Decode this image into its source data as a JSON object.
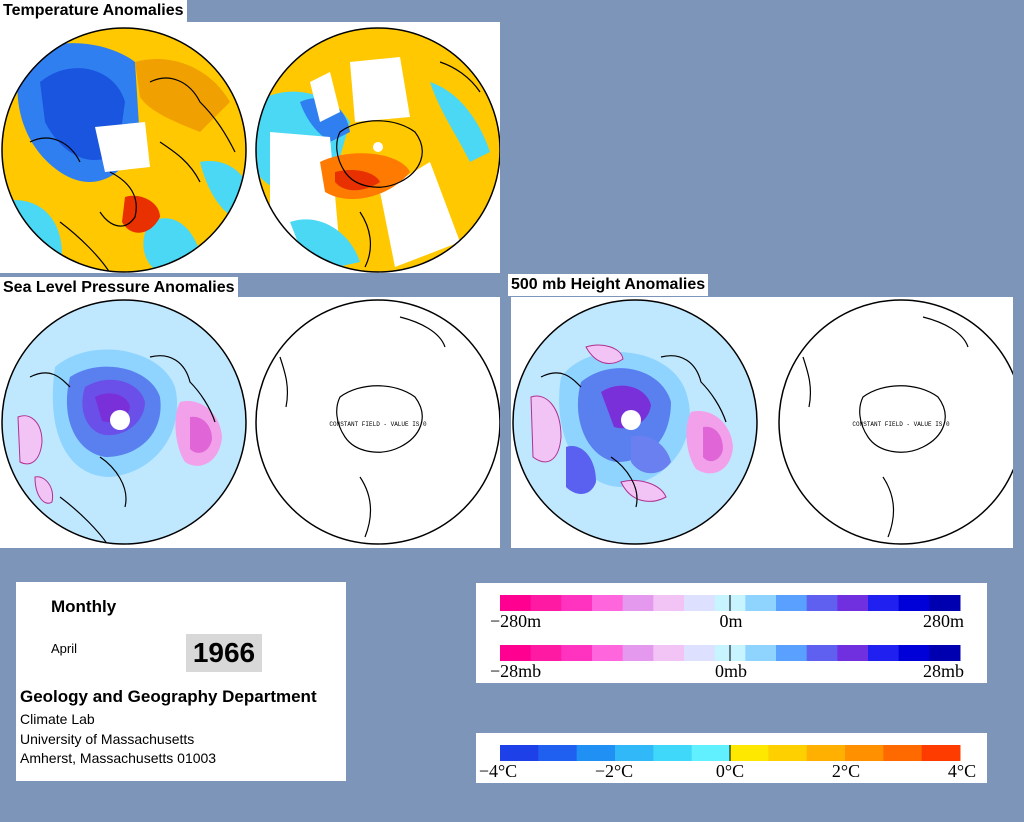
{
  "titles": {
    "temperature": "Temperature Anomalies",
    "slp": "Sea Level Pressure Anomalies",
    "height500": "500 mb Height Anomalies"
  },
  "map_annotations": {
    "slp_constant_field": "CONSTANT FIELD - VALUE IS 0",
    "height_constant_field": "CONSTANT FIELD - VALUE IS 0"
  },
  "info": {
    "period": "Monthly",
    "month": "April",
    "year": "1966",
    "department": "Geology and Geography Department",
    "lab": "Climate Lab",
    "university": "University of Massachusetts",
    "address": "Amherst, Massachusetts 01003"
  },
  "legend_height": {
    "min_label": "−280m",
    "mid_label": "0m",
    "max_label": "280m",
    "colors": [
      "#ff0090",
      "#ff1aa3",
      "#ff33c0",
      "#ff66dd",
      "#e599ee",
      "#f2c4f5",
      "#dde0ff",
      "#c8f4ff",
      "#8fd4ff",
      "#5aa0ff",
      "#6060f0",
      "#7030e0",
      "#2020f0",
      "#0000d8",
      "#0000b0"
    ]
  },
  "legend_slp": {
    "min_label": "−28mb",
    "mid_label": "0mb",
    "max_label": "28mb",
    "colors": [
      "#ff0090",
      "#ff1aa3",
      "#ff33c0",
      "#ff66dd",
      "#e599ee",
      "#f2c4f5",
      "#dde0ff",
      "#c8f4ff",
      "#8fd4ff",
      "#5aa0ff",
      "#6060f0",
      "#7030e0",
      "#2020f0",
      "#0000d8",
      "#0000b0"
    ]
  },
  "legend_temp": {
    "labels": [
      "−4°C",
      "−2°C",
      "0°C",
      "2°C",
      "4°C"
    ],
    "colors": [
      "#1e40e8",
      "#1f60f0",
      "#2090f5",
      "#30b8f8",
      "#40d8fa",
      "#60f0ff",
      "#ffe800",
      "#ffd000",
      "#ffb000",
      "#ff9000",
      "#ff6a00",
      "#ff3c00"
    ]
  },
  "colors": {
    "background": "#7d95b8",
    "temp_warm": "#ffc800",
    "temp_cool": "#4ad8f5",
    "temp_cold": "#1a55e0",
    "temp_hot": "#e83000",
    "anom_neutral": "#bfe8ff",
    "anom_negative": "#6070f0",
    "anom_positive": "#e066d8"
  }
}
